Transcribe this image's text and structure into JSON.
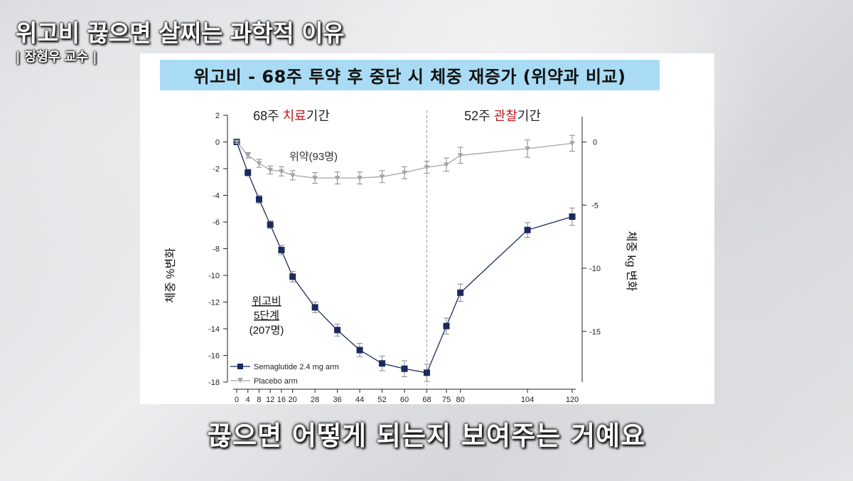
{
  "video": {
    "title": "위고비 끊으면 살찌는 과학적 이유",
    "speaker": "| 장형우 교수 |",
    "subtitle": "끊으면 어떻게 되는지 보여주는 거예요"
  },
  "slide": {
    "header": "위고비 - 68주 투약 후 중단 시 체중 재증가 (위약과 비교)"
  },
  "colors": {
    "semaglutide": "#1b2a5e",
    "placebo": "#a5a5a5",
    "highlight_red": "#c0161c",
    "header_bg": "#a9dcf4"
  },
  "chart_data": {
    "type": "line",
    "phase_labels": {
      "treatment": {
        "prefix": "68주 ",
        "highlight": "치료",
        "suffix": "기간"
      },
      "observation": {
        "prefix": "52주 ",
        "highlight": "관찰",
        "suffix": "기간"
      }
    },
    "divider_week": 68,
    "ylabel_left": "체중 %변화",
    "ylabel_right": "체중 kg 변화",
    "x_ticks": [
      0,
      4,
      8,
      12,
      16,
      20,
      28,
      36,
      44,
      52,
      60,
      68,
      75,
      80,
      104,
      120
    ],
    "ylim_left": [
      -18,
      2
    ],
    "y_ticks_left": [
      2,
      0,
      -2,
      -4,
      -6,
      -8,
      -10,
      -12,
      -14,
      -16,
      -18
    ],
    "y_ticks_right": [
      0,
      -5,
      -10,
      -15
    ],
    "series": [
      {
        "name": "Semaglutide 2.4 mg arm",
        "marker": "square",
        "color": "#1b2a5e",
        "x": [
          0,
          4,
          8,
          12,
          16,
          20,
          28,
          36,
          44,
          52,
          60,
          68,
          75,
          80,
          104,
          120
        ],
        "y": [
          0,
          -2.3,
          -4.3,
          -6.2,
          -8.1,
          -10.1,
          -12.4,
          -14.1,
          -15.6,
          -16.6,
          -17.0,
          -17.3,
          -13.8,
          -11.3,
          -6.6,
          -5.6
        ],
        "err": [
          0.2,
          0.25,
          0.3,
          0.3,
          0.35,
          0.4,
          0.4,
          0.45,
          0.5,
          0.55,
          0.6,
          0.65,
          0.6,
          0.65,
          0.55,
          0.65
        ]
      },
      {
        "name": "Placebo arm",
        "marker": "triangle-down",
        "color": "#a5a5a5",
        "x": [
          0,
          4,
          8,
          12,
          16,
          20,
          28,
          36,
          44,
          52,
          60,
          68,
          75,
          80,
          104,
          120
        ],
        "y": [
          0,
          -1.0,
          -1.6,
          -2.1,
          -2.2,
          -2.5,
          -2.7,
          -2.7,
          -2.7,
          -2.6,
          -2.3,
          -1.9,
          -1.7,
          -1.0,
          -0.5,
          -0.1
        ],
        "err": [
          0.1,
          0.2,
          0.3,
          0.3,
          0.35,
          0.35,
          0.4,
          0.45,
          0.45,
          0.45,
          0.45,
          0.45,
          0.5,
          0.6,
          0.65,
          0.6
        ]
      }
    ],
    "annotations": {
      "placebo": "위약(93명)",
      "sema_line1": "위고비",
      "sema_line2": "5단계",
      "sema_line3": "(207명)"
    },
    "legend_position": "bottom-left"
  }
}
